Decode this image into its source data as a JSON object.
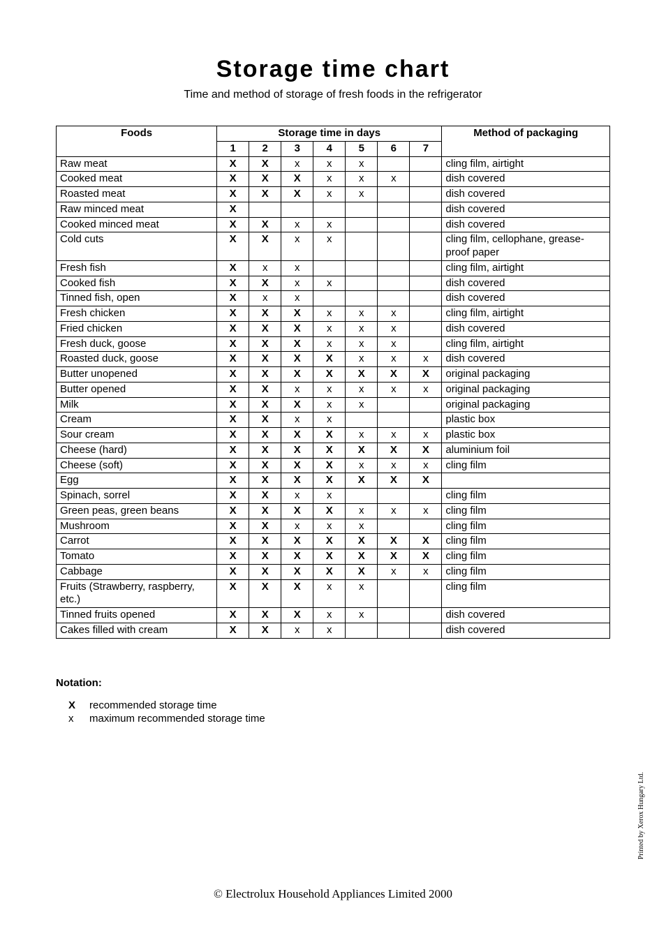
{
  "title": "Storage time chart",
  "subtitle": "Time and method of storage of fresh foods in the refrigerator",
  "table": {
    "header": {
      "foods": "Foods",
      "storage_time": "Storage time in days",
      "method": "Method of packaging",
      "days": [
        "1",
        "2",
        "3",
        "4",
        "5",
        "6",
        "7"
      ]
    },
    "rows": [
      {
        "food": "Raw meat",
        "days": [
          "X",
          "X",
          "x",
          "x",
          "x",
          "",
          ""
        ],
        "method": "cling film, airtight"
      },
      {
        "food": "Cooked meat",
        "days": [
          "X",
          "X",
          "X",
          "x",
          "x",
          "x",
          ""
        ],
        "method": "dish covered"
      },
      {
        "food": "Roasted meat",
        "days": [
          "X",
          "X",
          "X",
          "x",
          "x",
          "",
          ""
        ],
        "method": "dish covered"
      },
      {
        "food": "Raw minced meat",
        "days": [
          "X",
          "",
          "",
          "",
          "",
          "",
          ""
        ],
        "method": "dish covered"
      },
      {
        "food": "Cooked minced meat",
        "days": [
          "X",
          "X",
          "x",
          "x",
          "",
          "",
          ""
        ],
        "method": "dish covered"
      },
      {
        "food": "Cold cuts",
        "days": [
          "X",
          "X",
          "x",
          "x",
          "",
          "",
          ""
        ],
        "method": "cling film, cellophane, grease-proof paper"
      },
      {
        "food": "Fresh fish",
        "days": [
          "X",
          "x",
          "x",
          "",
          "",
          "",
          ""
        ],
        "method": "cling film, airtight"
      },
      {
        "food": "Cooked fish",
        "days": [
          "X",
          "X",
          "x",
          "x",
          "",
          "",
          ""
        ],
        "method": "dish covered"
      },
      {
        "food": "Tinned fish, open",
        "days": [
          "X",
          "x",
          "x",
          "",
          "",
          "",
          ""
        ],
        "method": "dish covered"
      },
      {
        "food": "Fresh chicken",
        "days": [
          "X",
          "X",
          "X",
          "x",
          "x",
          "x",
          ""
        ],
        "method": "cling film, airtight"
      },
      {
        "food": "Fried chicken",
        "days": [
          "X",
          "X",
          "X",
          "x",
          "x",
          "x",
          ""
        ],
        "method": "dish covered"
      },
      {
        "food": "Fresh duck, goose",
        "days": [
          "X",
          "X",
          "X",
          "x",
          "x",
          "x",
          ""
        ],
        "method": "cling film, airtight"
      },
      {
        "food": "Roasted duck, goose",
        "days": [
          "X",
          "X",
          "X",
          "X",
          "x",
          "x",
          "x"
        ],
        "method": "dish covered"
      },
      {
        "food": "Butter unopened",
        "days": [
          "X",
          "X",
          "X",
          "X",
          "X",
          "X",
          "X"
        ],
        "method": "original packaging"
      },
      {
        "food": "Butter opened",
        "days": [
          "X",
          "X",
          "x",
          "x",
          "x",
          "x",
          "x"
        ],
        "method": "original packaging"
      },
      {
        "food": "Milk",
        "days": [
          "X",
          "X",
          "X",
          "x",
          "x",
          "",
          ""
        ],
        "method": "original packaging"
      },
      {
        "food": "Cream",
        "days": [
          "X",
          "X",
          "x",
          "x",
          "",
          "",
          ""
        ],
        "method": "plastic box"
      },
      {
        "food": "Sour cream",
        "days": [
          "X",
          "X",
          "X",
          "X",
          "x",
          "x",
          "x"
        ],
        "method": "plastic box"
      },
      {
        "food": "Cheese (hard)",
        "days": [
          "X",
          "X",
          "X",
          "X",
          "X",
          "X",
          "X"
        ],
        "method": "aluminium foil"
      },
      {
        "food": "Cheese (soft)",
        "days": [
          "X",
          "X",
          "X",
          "X",
          "x",
          "x",
          "x"
        ],
        "method": "cling film"
      },
      {
        "food": "Egg",
        "days": [
          "X",
          "X",
          "X",
          "X",
          "X",
          "X",
          "X"
        ],
        "method": ""
      },
      {
        "food": "Spinach, sorrel",
        "days": [
          "X",
          "X",
          "x",
          "x",
          "",
          "",
          ""
        ],
        "method": "cling film"
      },
      {
        "food": "Green peas, green beans",
        "days": [
          "X",
          "X",
          "X",
          "X",
          "x",
          "x",
          "x"
        ],
        "method": "cling film"
      },
      {
        "food": "Mushroom",
        "days": [
          "X",
          "X",
          "x",
          "x",
          "x",
          "",
          ""
        ],
        "method": "cling film"
      },
      {
        "food": "Carrot",
        "days": [
          "X",
          "X",
          "X",
          "X",
          "X",
          "X",
          "X"
        ],
        "method": "cling film"
      },
      {
        "food": "Tomato",
        "days": [
          "X",
          "X",
          "X",
          "X",
          "X",
          "X",
          "X"
        ],
        "method": "cling film"
      },
      {
        "food": "Cabbage",
        "days": [
          "X",
          "X",
          "X",
          "X",
          "X",
          "x",
          "x"
        ],
        "method": "cling film"
      },
      {
        "food": "Fruits (Strawberry, raspberry, etc.)",
        "days": [
          "X",
          "X",
          "X",
          "x",
          "x",
          "",
          ""
        ],
        "method": "cling film"
      },
      {
        "food": "Tinned fruits opened",
        "days": [
          "X",
          "X",
          "X",
          "x",
          "x",
          "",
          ""
        ],
        "method": "dish covered"
      },
      {
        "food": "Cakes filled with cream",
        "days": [
          "X",
          "X",
          "x",
          "x",
          "",
          "",
          ""
        ],
        "method": "dish covered"
      }
    ]
  },
  "notation": {
    "title": "Notation:",
    "rec_symbol": "X",
    "rec_text": "recommended storage time",
    "max_symbol": "x",
    "max_text": "maximum recommended storage time"
  },
  "copyright": "© Electrolux Household Appliances Limited 2000",
  "printed_by": "Printed by Xerox Hungary Ltd."
}
